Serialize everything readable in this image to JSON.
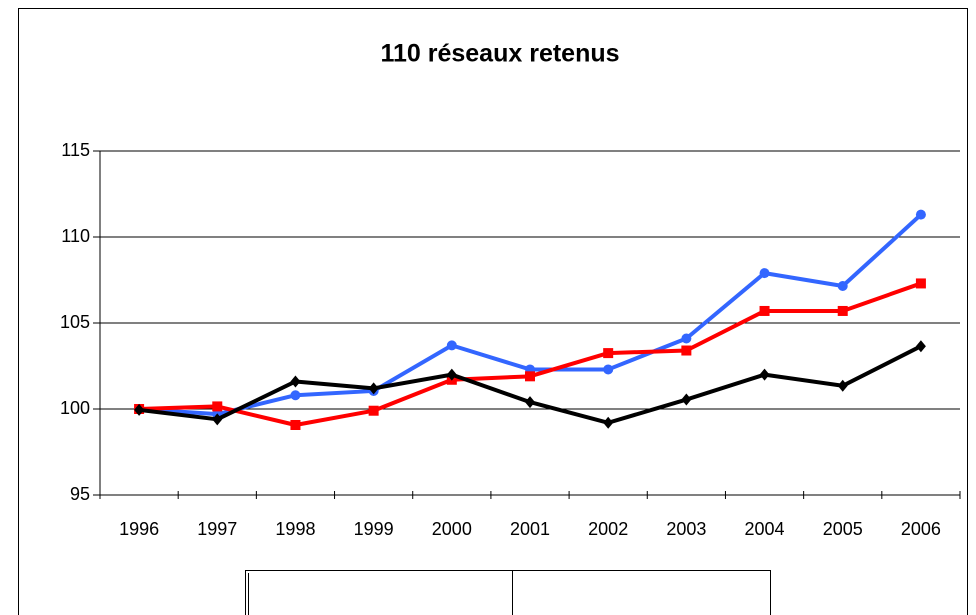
{
  "chart_data": {
    "type": "line",
    "title": "110 réseaux retenus",
    "categories": [
      "1996",
      "1997",
      "1998",
      "1999",
      "2000",
      "2001",
      "2002",
      "2003",
      "2004",
      "2005",
      "2006"
    ],
    "series": [
      {
        "color": "#3366ff",
        "marker": "circle",
        "values": [
          100,
          99.7,
          100.8,
          101.05,
          103.7,
          102.3,
          102.3,
          104.1,
          107.9,
          107.15,
          111.3
        ]
      },
      {
        "color": "#ff0000",
        "marker": "square",
        "values": [
          100,
          100.15,
          99.07,
          99.9,
          101.7,
          101.9,
          103.25,
          103.4,
          105.7,
          105.7,
          107.3
        ]
      },
      {
        "color": "#000000",
        "marker": "diamond",
        "values": [
          99.95,
          99.4,
          101.6,
          101.2,
          102.0,
          100.4,
          99.2,
          100.55,
          102.0,
          101.35,
          103.65
        ]
      }
    ],
    "ylim": [
      95,
      115
    ],
    "yticks": [
      95,
      100,
      105,
      110,
      115
    ],
    "grid": true
  }
}
